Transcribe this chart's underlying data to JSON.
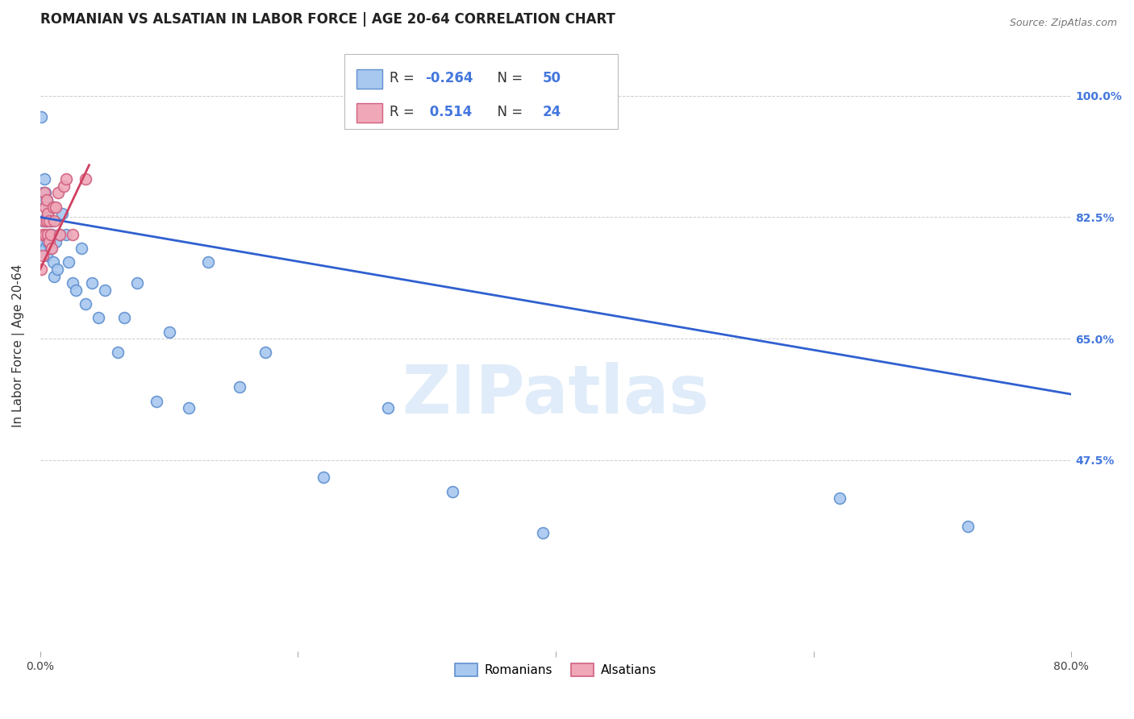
{
  "title": "ROMANIAN VS ALSATIAN IN LABOR FORCE | AGE 20-64 CORRELATION CHART",
  "source": "Source: ZipAtlas.com",
  "ylabel": "In Labor Force | Age 20-64",
  "xlim": [
    0.0,
    0.8
  ],
  "ylim": [
    0.2,
    1.08
  ],
  "yticks": [
    0.475,
    0.65,
    0.825,
    1.0
  ],
  "ytick_labels": [
    "47.5%",
    "65.0%",
    "82.5%",
    "100.0%"
  ],
  "xticks": [
    0.0,
    0.2,
    0.4,
    0.6,
    0.8
  ],
  "xtick_labels": [
    "0.0%",
    "",
    "",
    "",
    "80.0%"
  ],
  "watermark": "ZIPatlas",
  "romanian_color": "#a8c8f0",
  "alsatian_color": "#f0a8b8",
  "romanian_edge": "#6090d0",
  "alsatian_edge": "#d06080",
  "trend_romanian_color": "#3060d0",
  "trend_alsatian_color": "#d04060",
  "legend_R_romanian": "-0.264",
  "legend_N_romanian": "50",
  "legend_R_alsatian": "0.514",
  "legend_N_alsatian": "24",
  "romanian_x": [
    0.001,
    0.002,
    0.002,
    0.003,
    0.003,
    0.003,
    0.004,
    0.004,
    0.004,
    0.005,
    0.005,
    0.005,
    0.006,
    0.006,
    0.007,
    0.007,
    0.008,
    0.008,
    0.009,
    0.01,
    0.01,
    0.011,
    0.012,
    0.013,
    0.015,
    0.017,
    0.02,
    0.022,
    0.025,
    0.028,
    0.032,
    0.035,
    0.04,
    0.045,
    0.05,
    0.06,
    0.065,
    0.075,
    0.09,
    0.1,
    0.115,
    0.13,
    0.155,
    0.175,
    0.22,
    0.27,
    0.32,
    0.39,
    0.62,
    0.72
  ],
  "romanian_y": [
    0.97,
    0.86,
    0.82,
    0.88,
    0.85,
    0.79,
    0.86,
    0.82,
    0.78,
    0.85,
    0.82,
    0.77,
    0.83,
    0.79,
    0.84,
    0.8,
    0.82,
    0.78,
    0.8,
    0.84,
    0.76,
    0.74,
    0.79,
    0.75,
    0.8,
    0.83,
    0.8,
    0.76,
    0.73,
    0.72,
    0.78,
    0.7,
    0.73,
    0.68,
    0.72,
    0.63,
    0.68,
    0.73,
    0.56,
    0.66,
    0.55,
    0.76,
    0.58,
    0.63,
    0.45,
    0.55,
    0.43,
    0.37,
    0.42,
    0.38
  ],
  "alsatian_x": [
    0.001,
    0.002,
    0.002,
    0.003,
    0.003,
    0.004,
    0.004,
    0.005,
    0.005,
    0.006,
    0.006,
    0.007,
    0.007,
    0.008,
    0.009,
    0.01,
    0.011,
    0.012,
    0.014,
    0.015,
    0.018,
    0.02,
    0.025,
    0.035
  ],
  "alsatian_y": [
    0.75,
    0.8,
    0.77,
    0.86,
    0.82,
    0.84,
    0.8,
    0.85,
    0.82,
    0.83,
    0.8,
    0.82,
    0.79,
    0.8,
    0.78,
    0.84,
    0.82,
    0.84,
    0.86,
    0.8,
    0.87,
    0.88,
    0.8,
    0.88
  ],
  "background_color": "#ffffff",
  "grid_color": "#cccccc",
  "title_fontsize": 12,
  "axis_label_fontsize": 11,
  "tick_fontsize": 10,
  "right_tick_color": "#4477dd"
}
